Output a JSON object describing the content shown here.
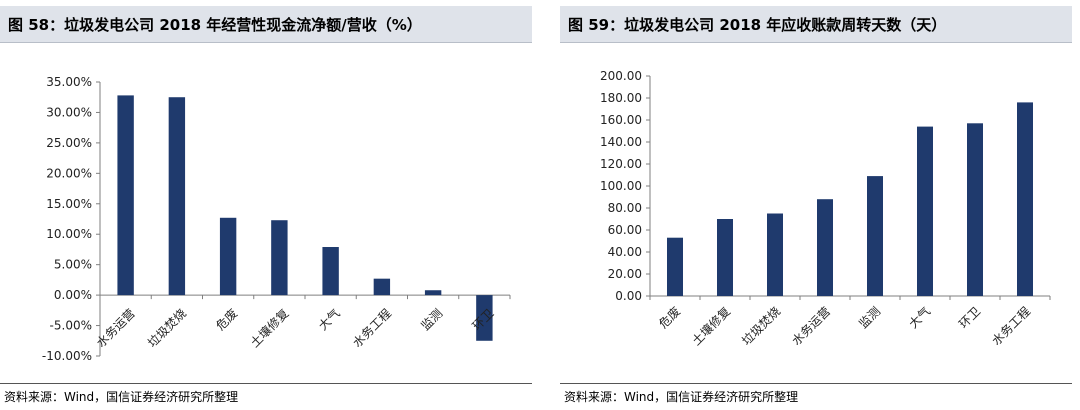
{
  "colors": {
    "bar": "#1f3a6d",
    "axis": "#7f7f7f",
    "title_bg": "#dfe3ea"
  },
  "charts": [
    {
      "title": "图 58：垃圾发电公司 2018 年经营性现金流净额/营收（%）",
      "source": "资料来源：Wind，国信证券经济研究所整理"
    },
    {
      "title": "图 59：垃圾发电公司 2018 年应收账款周转天数（天）",
      "source": "资料来源：Wind，国信证券经济研究所整理"
    }
  ],
  "chart_data": [
    {
      "type": "bar",
      "title": "图 58：垃圾发电公司 2018 年经营性现金流净额/营收（%）",
      "categories": [
        "水务运营",
        "垃圾焚烧",
        "危废",
        "土壤修复",
        "大气",
        "水务工程",
        "监测",
        "环卫"
      ],
      "values": [
        32.8,
        32.5,
        12.7,
        12.3,
        7.9,
        2.7,
        0.8,
        -7.5
      ],
      "ylim": [
        -10,
        35
      ],
      "yticks": [
        35,
        30,
        25,
        20,
        15,
        10,
        5,
        0,
        -5,
        -10
      ],
      "ytick_labels": [
        "35.00%",
        "30.00%",
        "25.00%",
        "20.00%",
        "15.00%",
        "10.00%",
        "5.00%",
        "0.00%",
        "-5.00%",
        "-10.00%"
      ],
      "grid": false,
      "xlabel": "",
      "ylabel": ""
    },
    {
      "type": "bar",
      "title": "图 59：垃圾发电公司 2018 年应收账款周转天数（天）",
      "categories": [
        "危废",
        "土壤修复",
        "垃圾焚烧",
        "水务运营",
        "监测",
        "大气",
        "环卫",
        "水务工程"
      ],
      "values": [
        53,
        70,
        75,
        88,
        109,
        154,
        157,
        176
      ],
      "ylim": [
        0,
        200
      ],
      "yticks": [
        200,
        180,
        160,
        140,
        120,
        100,
        80,
        60,
        40,
        20,
        0
      ],
      "ytick_labels": [
        "200.00",
        "180.00",
        "160.00",
        "140.00",
        "120.00",
        "100.00",
        "80.00",
        "60.00",
        "40.00",
        "20.00",
        "0.00"
      ],
      "grid": false,
      "xlabel": "",
      "ylabel": ""
    }
  ]
}
